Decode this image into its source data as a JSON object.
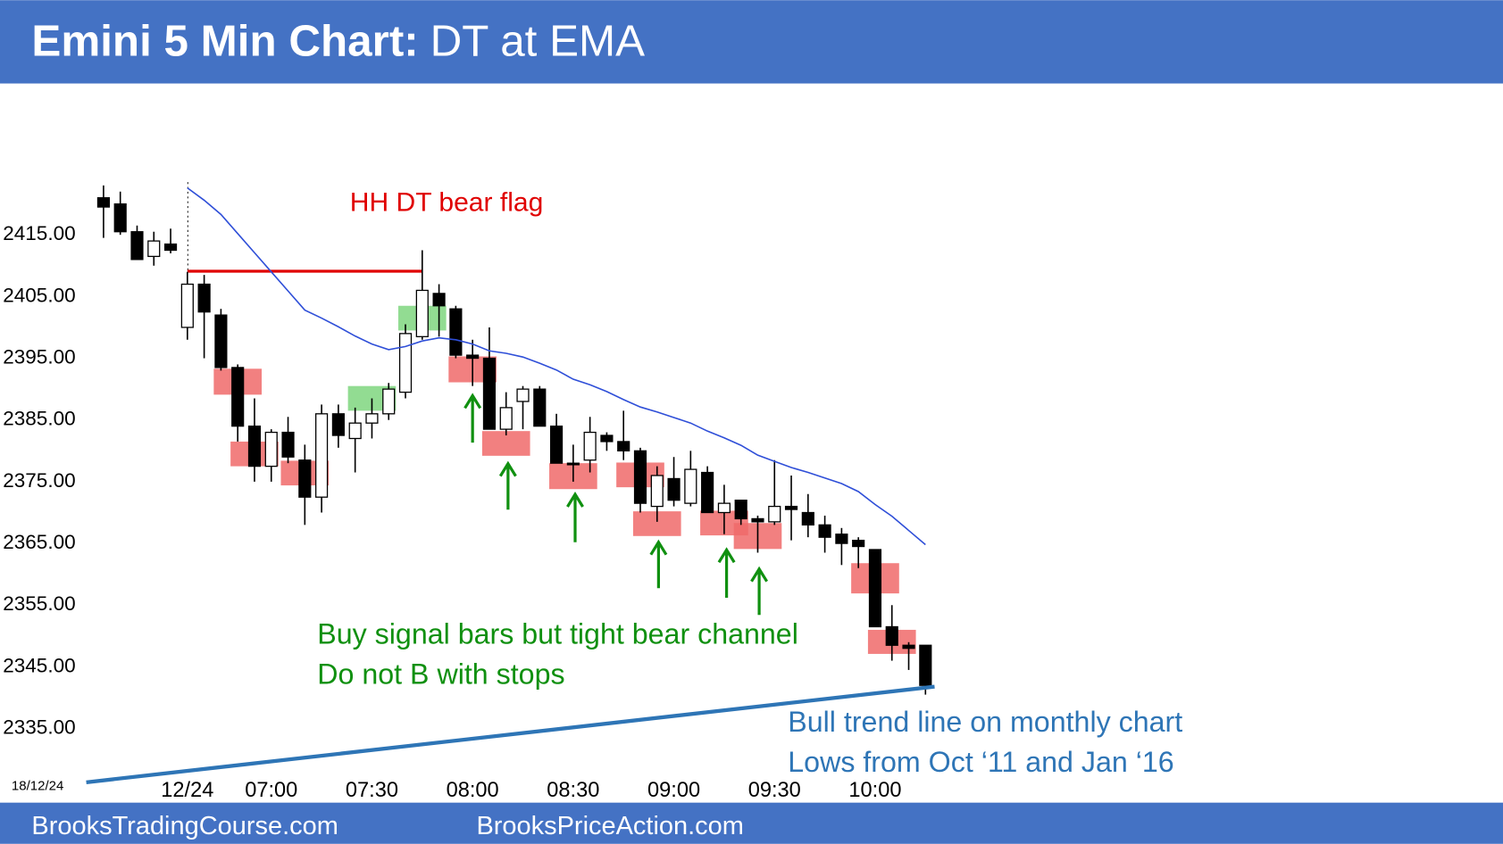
{
  "chart_data": {
    "type": "candlestick",
    "title": "Emini 5 Min Chart:",
    "subtitle": "DT at EMA",
    "date_label": "18/12/24",
    "footer": [
      "BrooksTradingCourse.com",
      "BrooksPriceAction.com"
    ],
    "annotations": [
      "HH DT bear flag",
      "Buy signal bars but tight bear channel",
      "Do not B with stops",
      "Bull trend line on monthly chart",
      "Lows from Oct ‘11 and Jan ‘16"
    ],
    "categories": [
      null,
      null,
      null,
      null,
      null,
      "12/24",
      null,
      null,
      null,
      null,
      "07:00",
      null,
      null,
      null,
      null,
      null,
      "07:30",
      null,
      null,
      null,
      null,
      null,
      "08:00",
      null,
      null,
      null,
      null,
      null,
      "08:30",
      null,
      null,
      null,
      null,
      null,
      "09:00",
      null,
      null,
      null,
      null,
      null,
      "09:30",
      null,
      null,
      null,
      null,
      null,
      "10:00",
      null,
      null,
      null,
      null,
      null,
      "10"
    ],
    "open": [
      2421,
      2420,
      2415.5,
      2411.5,
      2413.5,
      2400,
      2407,
      2402,
      2393.5,
      2384,
      2377.5,
      2383,
      2378.5,
      2372.5,
      2386,
      2382,
      2384.5,
      2386,
      2389.5,
      2398.5,
      2405.5,
      2403,
      2395.5,
      2395,
      2383.5,
      2388,
      2390,
      2384,
      2378,
      2378.5,
      2382.5,
      2381.5,
      2380,
      2371,
      2375.5,
      2371.5,
      2376.5,
      2370,
      2372,
      2369,
      2368.5,
      2371,
      2370,
      2368,
      2366.5,
      2365.5,
      2364,
      2351.5,
      2348.5,
      2348.5,
      null,
      null,
      null
    ],
    "high": [
      2423,
      2422,
      2416.5,
      2415.5,
      2416,
      2409,
      2408.5,
      2403,
      2394,
      2388.5,
      2383.5,
      2385.5,
      2381,
      2387.5,
      2387.5,
      2387,
      2388.5,
      2391,
      2400.5,
      2412.5,
      2407,
      2403.5,
      2398,
      2400,
      2389.5,
      2390.5,
      2390.5,
      2386,
      2381,
      2385.5,
      2383,
      2386.5,
      2380.5,
      2377.5,
      2379,
      2380,
      2377.5,
      2374.5,
      2372,
      2369.5,
      2378.5,
      2376,
      2373,
      2369.5,
      2367.5,
      2366,
      2364,
      2355,
      2349,
      2348.5,
      null,
      null,
      null
    ],
    "low": [
      2414.5,
      2415,
      2411,
      2410,
      2412,
      2398,
      2395,
      2393,
      2381.5,
      2375,
      2375,
      2378,
      2368,
      2370,
      2380.5,
      2376.5,
      2382,
      2385,
      2388.5,
      2398,
      2398.5,
      2395,
      2390.5,
      2383.5,
      2382.5,
      2383.5,
      2384,
      2378,
      2375,
      2376.5,
      2380,
      2378.5,
      2370,
      2368.5,
      2371,
      2371,
      2370,
      2366.5,
      2368,
      2363.5,
      2368,
      2365.5,
      2366,
      2363.5,
      2361.5,
      2361,
      2351.5,
      2346,
      2344.5,
      2340.5,
      null,
      null,
      null
    ],
    "close": [
      2419.5,
      2415.5,
      2411,
      2414,
      2412.5,
      2407,
      2402.5,
      2393.5,
      2384,
      2377.5,
      2383,
      2379,
      2372.5,
      2386,
      2382.5,
      2384.5,
      2386,
      2390,
      2399,
      2406,
      2403.5,
      2395.5,
      2395,
      2383.5,
      2387,
      2390,
      2384,
      2378,
      2377.75,
      2383,
      2381.5,
      2380,
      2371.5,
      2376,
      2372,
      2377,
      2370,
      2371.5,
      2369,
      2368.5,
      2371,
      2370.5,
      2368,
      2366,
      2365,
      2364.5,
      2351.5,
      2348.5,
      2348,
      2342,
      null,
      null,
      null
    ],
    "ema": {
      "color": "#2f4fd8",
      "values": [
        null,
        null,
        null,
        null,
        null,
        2422.6,
        2420.6,
        2418.3,
        2415.2,
        2412.1,
        2409,
        2405.9,
        2402.8,
        2401.5,
        2400.1,
        2398.6,
        2397.3,
        2396.4,
        2396.9,
        2397.8,
        2398.3,
        2398,
        2397.3,
        2396.2,
        2395.8,
        2395.2,
        2394.2,
        2393.1,
        2391.6,
        2390.7,
        2389.6,
        2388.3,
        2387.1,
        2386.3,
        2385.4,
        2384.5,
        2383.2,
        2382.1,
        2380.9,
        2379.3,
        2378.3,
        2377.3,
        2376.5,
        2375.6,
        2374.7,
        2373.4,
        2371.3,
        2369.4,
        2367.1,
        2364.8,
        null,
        null,
        null
      ]
    },
    "highlights": [
      {
        "index": 8,
        "low": 2389.1,
        "high": 2393.3,
        "color": "#f06a6a"
      },
      {
        "index": 9,
        "low": 2377.5,
        "high": 2381.5,
        "color": "#f06a6a"
      },
      {
        "index": 12,
        "low": 2374.4,
        "high": 2378.4,
        "color": "#f06a6a"
      },
      {
        "index": 16,
        "low": 2386.5,
        "high": 2390.5,
        "color": "#7fd67f"
      },
      {
        "index": 19,
        "low": 2399.5,
        "high": 2403.5,
        "color": "#7fd67f"
      },
      {
        "index": 22,
        "low": 2391.1,
        "high": 2395.3,
        "color": "#f06a6a"
      },
      {
        "index": 24,
        "low": 2379.2,
        "high": 2383.2,
        "color": "#f06a6a"
      },
      {
        "index": 28,
        "low": 2373.8,
        "high": 2378,
        "color": "#f06a6a"
      },
      {
        "index": 32,
        "low": 2374.1,
        "high": 2378.1,
        "color": "#f06a6a"
      },
      {
        "index": 33,
        "low": 2366.2,
        "high": 2370.2,
        "color": "#f06a6a"
      },
      {
        "index": 37,
        "low": 2366.3,
        "high": 2370.3,
        "color": "#f06a6a"
      },
      {
        "index": 39,
        "low": 2364.1,
        "high": 2368.3,
        "color": "#f06a6a"
      },
      {
        "index": 46,
        "low": 2356.9,
        "high": 2361.8,
        "color": "#f06a6a"
      },
      {
        "index": 47,
        "low": 2347.1,
        "high": 2351,
        "color": "#f06a6a"
      }
    ],
    "resistance_line": {
      "value": 2409.1,
      "from": 5,
      "to": 19,
      "color": "#e00000"
    },
    "trend_line": {
      "values": [
        2326.3,
        2341.8
      ],
      "color": "#2e75b6"
    },
    "ylim": [
      2323,
      2437.5
    ],
    "yticks": [
      {
        "value": 2415,
        "label": "2415.00"
      },
      {
        "value": 2405,
        "label": "2405.00"
      },
      {
        "value": 2395,
        "label": "2395.00"
      },
      {
        "value": 2385,
        "label": "2385.00"
      },
      {
        "value": 2375,
        "label": "2375.00"
      },
      {
        "value": 2365,
        "label": "2365.00"
      },
      {
        "value": 2355,
        "label": "2355.00"
      },
      {
        "value": 2345,
        "label": "2345.00"
      },
      {
        "value": 2335,
        "label": "2335.00"
      }
    ]
  }
}
